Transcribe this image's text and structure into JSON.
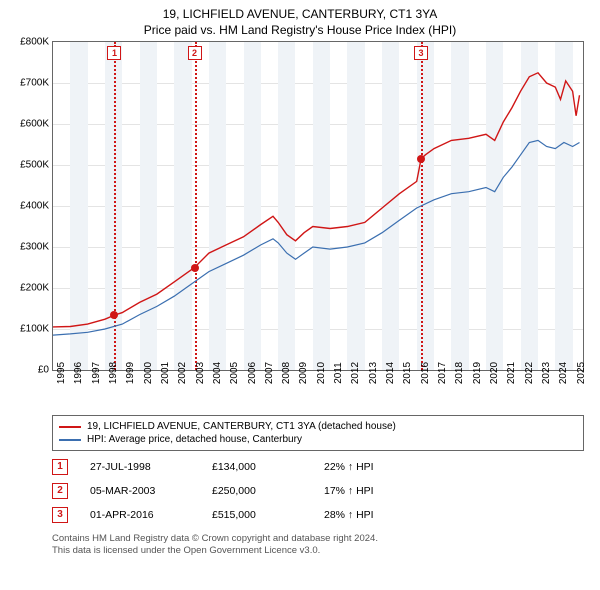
{
  "title_line1": "19, LICHFIELD AVENUE, CANTERBURY, CT1 3YA",
  "title_line2": "Price paid vs. HM Land Registry's House Price Index (HPI)",
  "chart": {
    "type": "line",
    "background_color": "#ffffff",
    "grid_color": "#e4e4e4",
    "border_color": "#666666",
    "alt_band_color": "#eff3f7",
    "yaxis": {
      "min": 0,
      "max": 800000,
      "step": 100000,
      "labels": [
        "£0",
        "£100K",
        "£200K",
        "£300K",
        "£400K",
        "£500K",
        "£600K",
        "£700K",
        "£800K"
      ],
      "label_fontsize": 10
    },
    "xaxis": {
      "min": 1995,
      "max": 2025.6,
      "years": [
        1995,
        1996,
        1997,
        1998,
        1999,
        2000,
        2001,
        2002,
        2003,
        2004,
        2005,
        2006,
        2007,
        2008,
        2009,
        2010,
        2011,
        2012,
        2013,
        2014,
        2015,
        2016,
        2017,
        2018,
        2019,
        2020,
        2021,
        2022,
        2023,
        2024,
        2025
      ],
      "label_fontsize": 10
    },
    "event_line_color": "#d01616",
    "series": [
      {
        "name": "19, LICHFIELD AVENUE, CANTERBURY, CT1 3YA (detached house)",
        "color": "#d01616",
        "line_width": 1.4,
        "points": [
          [
            1995.0,
            105000
          ],
          [
            1996.0,
            106000
          ],
          [
            1997.0,
            112000
          ],
          [
            1998.0,
            124000
          ],
          [
            1998.55,
            134000
          ],
          [
            1999.0,
            140000
          ],
          [
            2000.0,
            165000
          ],
          [
            2001.0,
            185000
          ],
          [
            2002.0,
            215000
          ],
          [
            2003.0,
            245000
          ],
          [
            2003.17,
            250000
          ],
          [
            2004.0,
            285000
          ],
          [
            2005.0,
            305000
          ],
          [
            2006.0,
            325000
          ],
          [
            2007.0,
            355000
          ],
          [
            2007.7,
            375000
          ],
          [
            2008.0,
            360000
          ],
          [
            2008.5,
            330000
          ],
          [
            2009.0,
            315000
          ],
          [
            2009.5,
            335000
          ],
          [
            2010.0,
            350000
          ],
          [
            2011.0,
            345000
          ],
          [
            2012.0,
            350000
          ],
          [
            2013.0,
            360000
          ],
          [
            2014.0,
            395000
          ],
          [
            2015.0,
            430000
          ],
          [
            2016.0,
            460000
          ],
          [
            2016.25,
            515000
          ],
          [
            2016.5,
            525000
          ],
          [
            2017.0,
            540000
          ],
          [
            2018.0,
            560000
          ],
          [
            2019.0,
            565000
          ],
          [
            2020.0,
            575000
          ],
          [
            2020.5,
            560000
          ],
          [
            2021.0,
            605000
          ],
          [
            2021.5,
            640000
          ],
          [
            2022.0,
            680000
          ],
          [
            2022.5,
            715000
          ],
          [
            2023.0,
            725000
          ],
          [
            2023.5,
            700000
          ],
          [
            2024.0,
            690000
          ],
          [
            2024.3,
            660000
          ],
          [
            2024.6,
            705000
          ],
          [
            2025.0,
            680000
          ],
          [
            2025.2,
            620000
          ],
          [
            2025.4,
            670000
          ]
        ]
      },
      {
        "name": "HPI: Average price, detached house, Canterbury",
        "color": "#3b6fb0",
        "line_width": 1.2,
        "points": [
          [
            1995.0,
            85000
          ],
          [
            1996.0,
            88000
          ],
          [
            1997.0,
            92000
          ],
          [
            1998.0,
            100000
          ],
          [
            1999.0,
            112000
          ],
          [
            2000.0,
            135000
          ],
          [
            2001.0,
            155000
          ],
          [
            2002.0,
            180000
          ],
          [
            2003.0,
            210000
          ],
          [
            2004.0,
            240000
          ],
          [
            2005.0,
            260000
          ],
          [
            2006.0,
            280000
          ],
          [
            2007.0,
            305000
          ],
          [
            2007.7,
            320000
          ],
          [
            2008.0,
            310000
          ],
          [
            2008.5,
            285000
          ],
          [
            2009.0,
            270000
          ],
          [
            2009.5,
            285000
          ],
          [
            2010.0,
            300000
          ],
          [
            2011.0,
            295000
          ],
          [
            2012.0,
            300000
          ],
          [
            2013.0,
            310000
          ],
          [
            2014.0,
            335000
          ],
          [
            2015.0,
            365000
          ],
          [
            2016.0,
            395000
          ],
          [
            2017.0,
            415000
          ],
          [
            2018.0,
            430000
          ],
          [
            2019.0,
            435000
          ],
          [
            2020.0,
            445000
          ],
          [
            2020.5,
            435000
          ],
          [
            2021.0,
            470000
          ],
          [
            2021.5,
            495000
          ],
          [
            2022.0,
            525000
          ],
          [
            2022.5,
            555000
          ],
          [
            2023.0,
            560000
          ],
          [
            2023.5,
            545000
          ],
          [
            2024.0,
            540000
          ],
          [
            2024.5,
            555000
          ],
          [
            2025.0,
            545000
          ],
          [
            2025.4,
            555000
          ]
        ]
      }
    ],
    "events": [
      {
        "n": "1",
        "year": 1998.55,
        "badge_color": "#d01616",
        "date": "27-JUL-1998",
        "price": "£134,000",
        "hpi": "22% ↑ HPI",
        "marker_value": 134000
      },
      {
        "n": "2",
        "year": 2003.17,
        "badge_color": "#d01616",
        "date": "05-MAR-2003",
        "price": "£250,000",
        "hpi": "17% ↑ HPI",
        "marker_value": 250000
      },
      {
        "n": "3",
        "year": 2016.25,
        "badge_color": "#d01616",
        "date": "01-APR-2016",
        "price": "£515,000",
        "hpi": "28% ↑ HPI",
        "marker_value": 515000
      }
    ]
  },
  "legend": {
    "items": [
      {
        "color": "#d01616",
        "label": "19, LICHFIELD AVENUE, CANTERBURY, CT1 3YA (detached house)"
      },
      {
        "color": "#3b6fb0",
        "label": "HPI: Average price, detached house, Canterbury"
      }
    ]
  },
  "footer_line1": "Contains HM Land Registry data © Crown copyright and database right 2024.",
  "footer_line2": "This data is licensed under the Open Government Licence v3.0."
}
